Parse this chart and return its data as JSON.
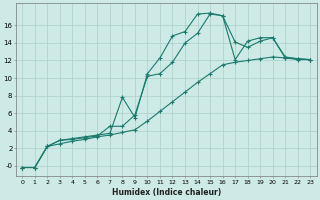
{
  "xlabel": "Humidex (Indice chaleur)",
  "ylabel": "",
  "background_color": "#ceeae6",
  "grid_color": "#aacfca",
  "line_color": "#1a7a6e",
  "xlim": [
    -0.5,
    23.5
  ],
  "ylim": [
    -1.2,
    18.5
  ],
  "x_ticks": [
    0,
    1,
    2,
    3,
    4,
    5,
    6,
    7,
    8,
    9,
    10,
    11,
    12,
    13,
    14,
    15,
    16,
    17,
    18,
    19,
    20,
    21,
    22,
    23
  ],
  "y_ticks": [
    0,
    2,
    4,
    6,
    8,
    10,
    12,
    14,
    16
  ],
  "y_tick_labels": [
    "-0",
    "2",
    "4",
    "6",
    "8",
    "10",
    "12",
    "14",
    "16"
  ],
  "line1_x": [
    0,
    1,
    2,
    3,
    4,
    5,
    6,
    7,
    8,
    9,
    10,
    11,
    12,
    13,
    14,
    15,
    16,
    17,
    18,
    19,
    20,
    21,
    22,
    23
  ],
  "line1_y": [
    -0.2,
    -0.2,
    2.2,
    2.9,
    3.1,
    3.3,
    3.5,
    3.7,
    7.8,
    5.5,
    10.5,
    12.3,
    14.8,
    15.3,
    17.3,
    17.4,
    17.1,
    12.1,
    14.2,
    14.6,
    14.6,
    12.3,
    12.2,
    12.1
  ],
  "line2_x": [
    0,
    1,
    2,
    3,
    4,
    5,
    6,
    7,
    8,
    9,
    10,
    11,
    12,
    13,
    14,
    15,
    16,
    17,
    18,
    19,
    20,
    21,
    22,
    23
  ],
  "line2_y": [
    -0.2,
    -0.2,
    2.2,
    2.9,
    3.0,
    3.2,
    3.4,
    4.5,
    4.5,
    5.8,
    10.2,
    10.5,
    11.8,
    14.0,
    15.1,
    17.3,
    17.1,
    14.1,
    13.5,
    14.2,
    14.6,
    12.4,
    12.2,
    12.1
  ],
  "line3_x": [
    0,
    1,
    2,
    3,
    4,
    5,
    6,
    7,
    8,
    9,
    10,
    11,
    12,
    13,
    14,
    15,
    16,
    17,
    18,
    19,
    20,
    21,
    22,
    23
  ],
  "line3_y": [
    -0.2,
    -0.2,
    2.2,
    2.5,
    2.8,
    3.0,
    3.3,
    3.5,
    3.8,
    4.1,
    5.1,
    6.2,
    7.3,
    8.4,
    9.5,
    10.5,
    11.5,
    11.8,
    12.0,
    12.2,
    12.4,
    12.3,
    12.1,
    12.1
  ]
}
